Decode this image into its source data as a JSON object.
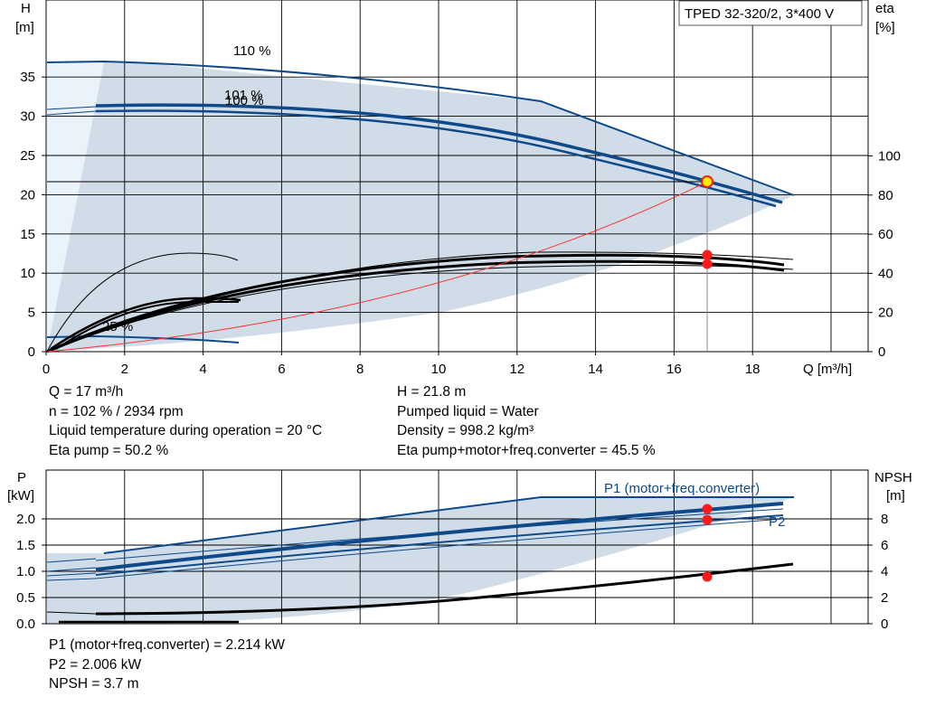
{
  "pump_model": "TPED 32-320/2, 3*400 V",
  "top_chart": {
    "y_left_label": [
      "H",
      "[m]"
    ],
    "y_right_label": [
      "eta",
      "[%]"
    ],
    "x_label": "Q [m³/h]",
    "x_ticks": [
      "0",
      "2",
      "4",
      "6",
      "8",
      "10",
      "12",
      "14",
      "16",
      "18"
    ],
    "y_left_ticks": [
      "0",
      "5",
      "10",
      "15",
      "20",
      "25",
      "30",
      "35"
    ],
    "y_right_ticks": [
      "0",
      "20",
      "40",
      "60",
      "80",
      "100"
    ],
    "curve_labels": [
      "110 %",
      "101 %",
      "100 %",
      "25 %"
    ]
  },
  "duty_info": {
    "left": [
      "Q = 17 m³/h",
      "n = 102 % / 2934 rpm",
      "Liquid temperature during operation = 20 °C",
      "Eta pump = 50.2 %"
    ],
    "right": [
      "H = 21.8 m",
      "Pumped liquid = Water",
      "Density = 998.2 kg/m³",
      "Eta pump+motor+freq.converter = 45.5 %"
    ]
  },
  "bottom_chart": {
    "y_left_label": [
      "P",
      "[kW]"
    ],
    "y_right_label": [
      "NPSH",
      "[m]"
    ],
    "y_left_ticks": [
      "0.0",
      "0.5",
      "1.0",
      "1.5",
      "2.0"
    ],
    "y_right_ticks": [
      "0",
      "2",
      "4",
      "6",
      "8"
    ],
    "series_labels": [
      "P1 (motor+freq.converter)",
      "P2"
    ]
  },
  "power_info": [
    "P1 (motor+freq.converter) = 2.214 kW",
    "P2 = 2.006 kW",
    "NPSH = 3.7 m"
  ],
  "colors": {
    "curve": "#0e4a8a",
    "area": "#d0dce8",
    "area_light": "#eaf2fa",
    "point": "#ff1a1a",
    "system": "#ff3333"
  },
  "chart_data": [
    {
      "type": "line",
      "xlabel": "Q [m³/h]",
      "ylabel": "H [m]",
      "y2label": "eta [%]",
      "xlim": [
        0,
        21
      ],
      "ylim": [
        0,
        40
      ],
      "y2lim": [
        0,
        140
      ],
      "duty_point": {
        "x": 17,
        "y": 21.8
      },
      "series": [
        {
          "name": "110 %",
          "x": [
            0,
            1.5,
            4,
            8,
            12.7,
            16,
            19.2
          ],
          "y": [
            37,
            37,
            36.5,
            34.7,
            32,
            25.5,
            20
          ]
        },
        {
          "name": "101 %",
          "x": [
            1.3,
            4,
            8,
            12,
            16,
            19
          ],
          "y": [
            31.5,
            31.3,
            30.2,
            27.8,
            24.2,
            19.3
          ]
        },
        {
          "name": "100 %",
          "x": [
            1.3,
            4,
            8,
            12,
            16,
            18.8
          ],
          "y": [
            30.8,
            30.6,
            29.6,
            27.2,
            23.7,
            18.8
          ]
        },
        {
          "name": "25 %",
          "x": [
            1.3,
            3,
            4.9
          ],
          "y": [
            1.9,
            1.7,
            1.3
          ]
        },
        {
          "name": "Eta pump",
          "axis": "y2",
          "x": [
            0,
            2,
            4,
            6,
            8,
            10,
            12,
            14,
            16,
            18,
            19.2
          ],
          "y": [
            0,
            18.4,
            28.7,
            35.8,
            40.6,
            43.8,
            45.6,
            46.2,
            46,
            44.1,
            42.2
          ]
        },
        {
          "name": "Eta pump+motor+freq.converter",
          "axis": "y2",
          "x": [
            0,
            2,
            4,
            6,
            8,
            10,
            12,
            14,
            16,
            18,
            19.2
          ],
          "y": [
            0,
            17,
            26.5,
            33.1,
            37.5,
            40.5,
            42.1,
            42.6,
            42.5,
            40.8,
            39
          ]
        },
        {
          "name": "System curve",
          "x": [
            0,
            4,
            8,
            12,
            16,
            17
          ],
          "y": [
            0,
            1.2,
            4.8,
            10.9,
            19.3,
            21.8
          ]
        }
      ]
    },
    {
      "type": "line",
      "ylabel": "P [kW]",
      "y2label": "NPSH [m]",
      "xlim": [
        0,
        21
      ],
      "ylim": [
        0,
        2.6
      ],
      "y2lim": [
        0,
        10
      ],
      "duty_point": {
        "x": 17,
        "p1": 2.214,
        "p2": 2.006,
        "npsh": 3.7
      },
      "series": [
        {
          "name": "P1 (motor+freq.converter)",
          "x": [
            1.3,
            6,
            12.7,
            19.2
          ],
          "y": [
            1.35,
            1.75,
            2.43,
            2.43
          ]
        },
        {
          "name": "P1 (motor+freq.converter) 101 %",
          "x": [
            1.3,
            6,
            12,
            17,
            19
          ],
          "y": [
            1.06,
            1.47,
            1.86,
            2.214,
            2.3
          ]
        },
        {
          "name": "P2",
          "x": [
            1.3,
            6,
            12,
            17,
            19
          ],
          "y": [
            0.96,
            1.35,
            1.7,
            2.006,
            2.09
          ]
        },
        {
          "name": "NPSH",
          "axis": "y2",
          "x": [
            0,
            4,
            8,
            12,
            16,
            17,
            19.2
          ],
          "y": [
            0.3,
            0.5,
            1,
            1.6,
            3.1,
            3.7,
            4.6
          ]
        }
      ]
    }
  ]
}
